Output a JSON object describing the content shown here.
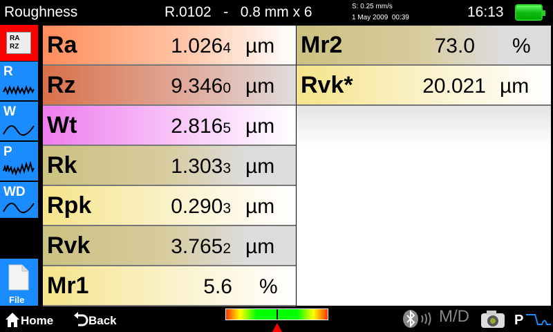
{
  "header": {
    "title": "Roughness",
    "program": "R.0102   -   0.8 mm x 6",
    "speed": "S: 0.25 mm/s",
    "datetime": "1 May 2009  00:39",
    "clock": "16:13",
    "battery_level": 1.0
  },
  "sidebar": {
    "items": [
      {
        "label": "RA RZ",
        "icon": "table-icon",
        "active": true
      },
      {
        "label": "R",
        "icon": "roughness-wave-icon"
      },
      {
        "label": "W",
        "icon": "waviness-wave-icon"
      },
      {
        "label": "P",
        "icon": "profile-wave-icon"
      },
      {
        "label": "WD",
        "icon": "waviness-wave-icon"
      }
    ],
    "file": "File"
  },
  "left_rows": [
    {
      "name": "Ra",
      "value": "1.026",
      "sub": "4",
      "unit": "µm"
    },
    {
      "name": "Rz",
      "value": "9.346",
      "sub": "0",
      "unit": "µm"
    },
    {
      "name": "Wt",
      "value": "2.816",
      "sub": "5",
      "unit": "µm"
    },
    {
      "name": "Rk",
      "value": "1.303",
      "sub": "3",
      "unit": "µm"
    },
    {
      "name": "Rpk",
      "value": "0.290",
      "sub": "3",
      "unit": "µm"
    },
    {
      "name": "Rvk",
      "value": "3.765",
      "sub": "2",
      "unit": "µm"
    },
    {
      "name": "Mr1",
      "value": "5.6",
      "sub": "",
      "unit": "%"
    }
  ],
  "right_rows": [
    {
      "name": "Mr2",
      "value": "73.0",
      "sub": "",
      "unit": "%"
    },
    {
      "name": "Rvk*",
      "value": "20.021",
      "sub": "",
      "unit": "µm"
    }
  ],
  "footer": {
    "home": "Home",
    "back": "Back",
    "gauge_position": 0.5,
    "md": "M/D",
    "profile": "P"
  },
  "colors": {
    "accent": "#1a8cff",
    "active": "#ff0000"
  }
}
